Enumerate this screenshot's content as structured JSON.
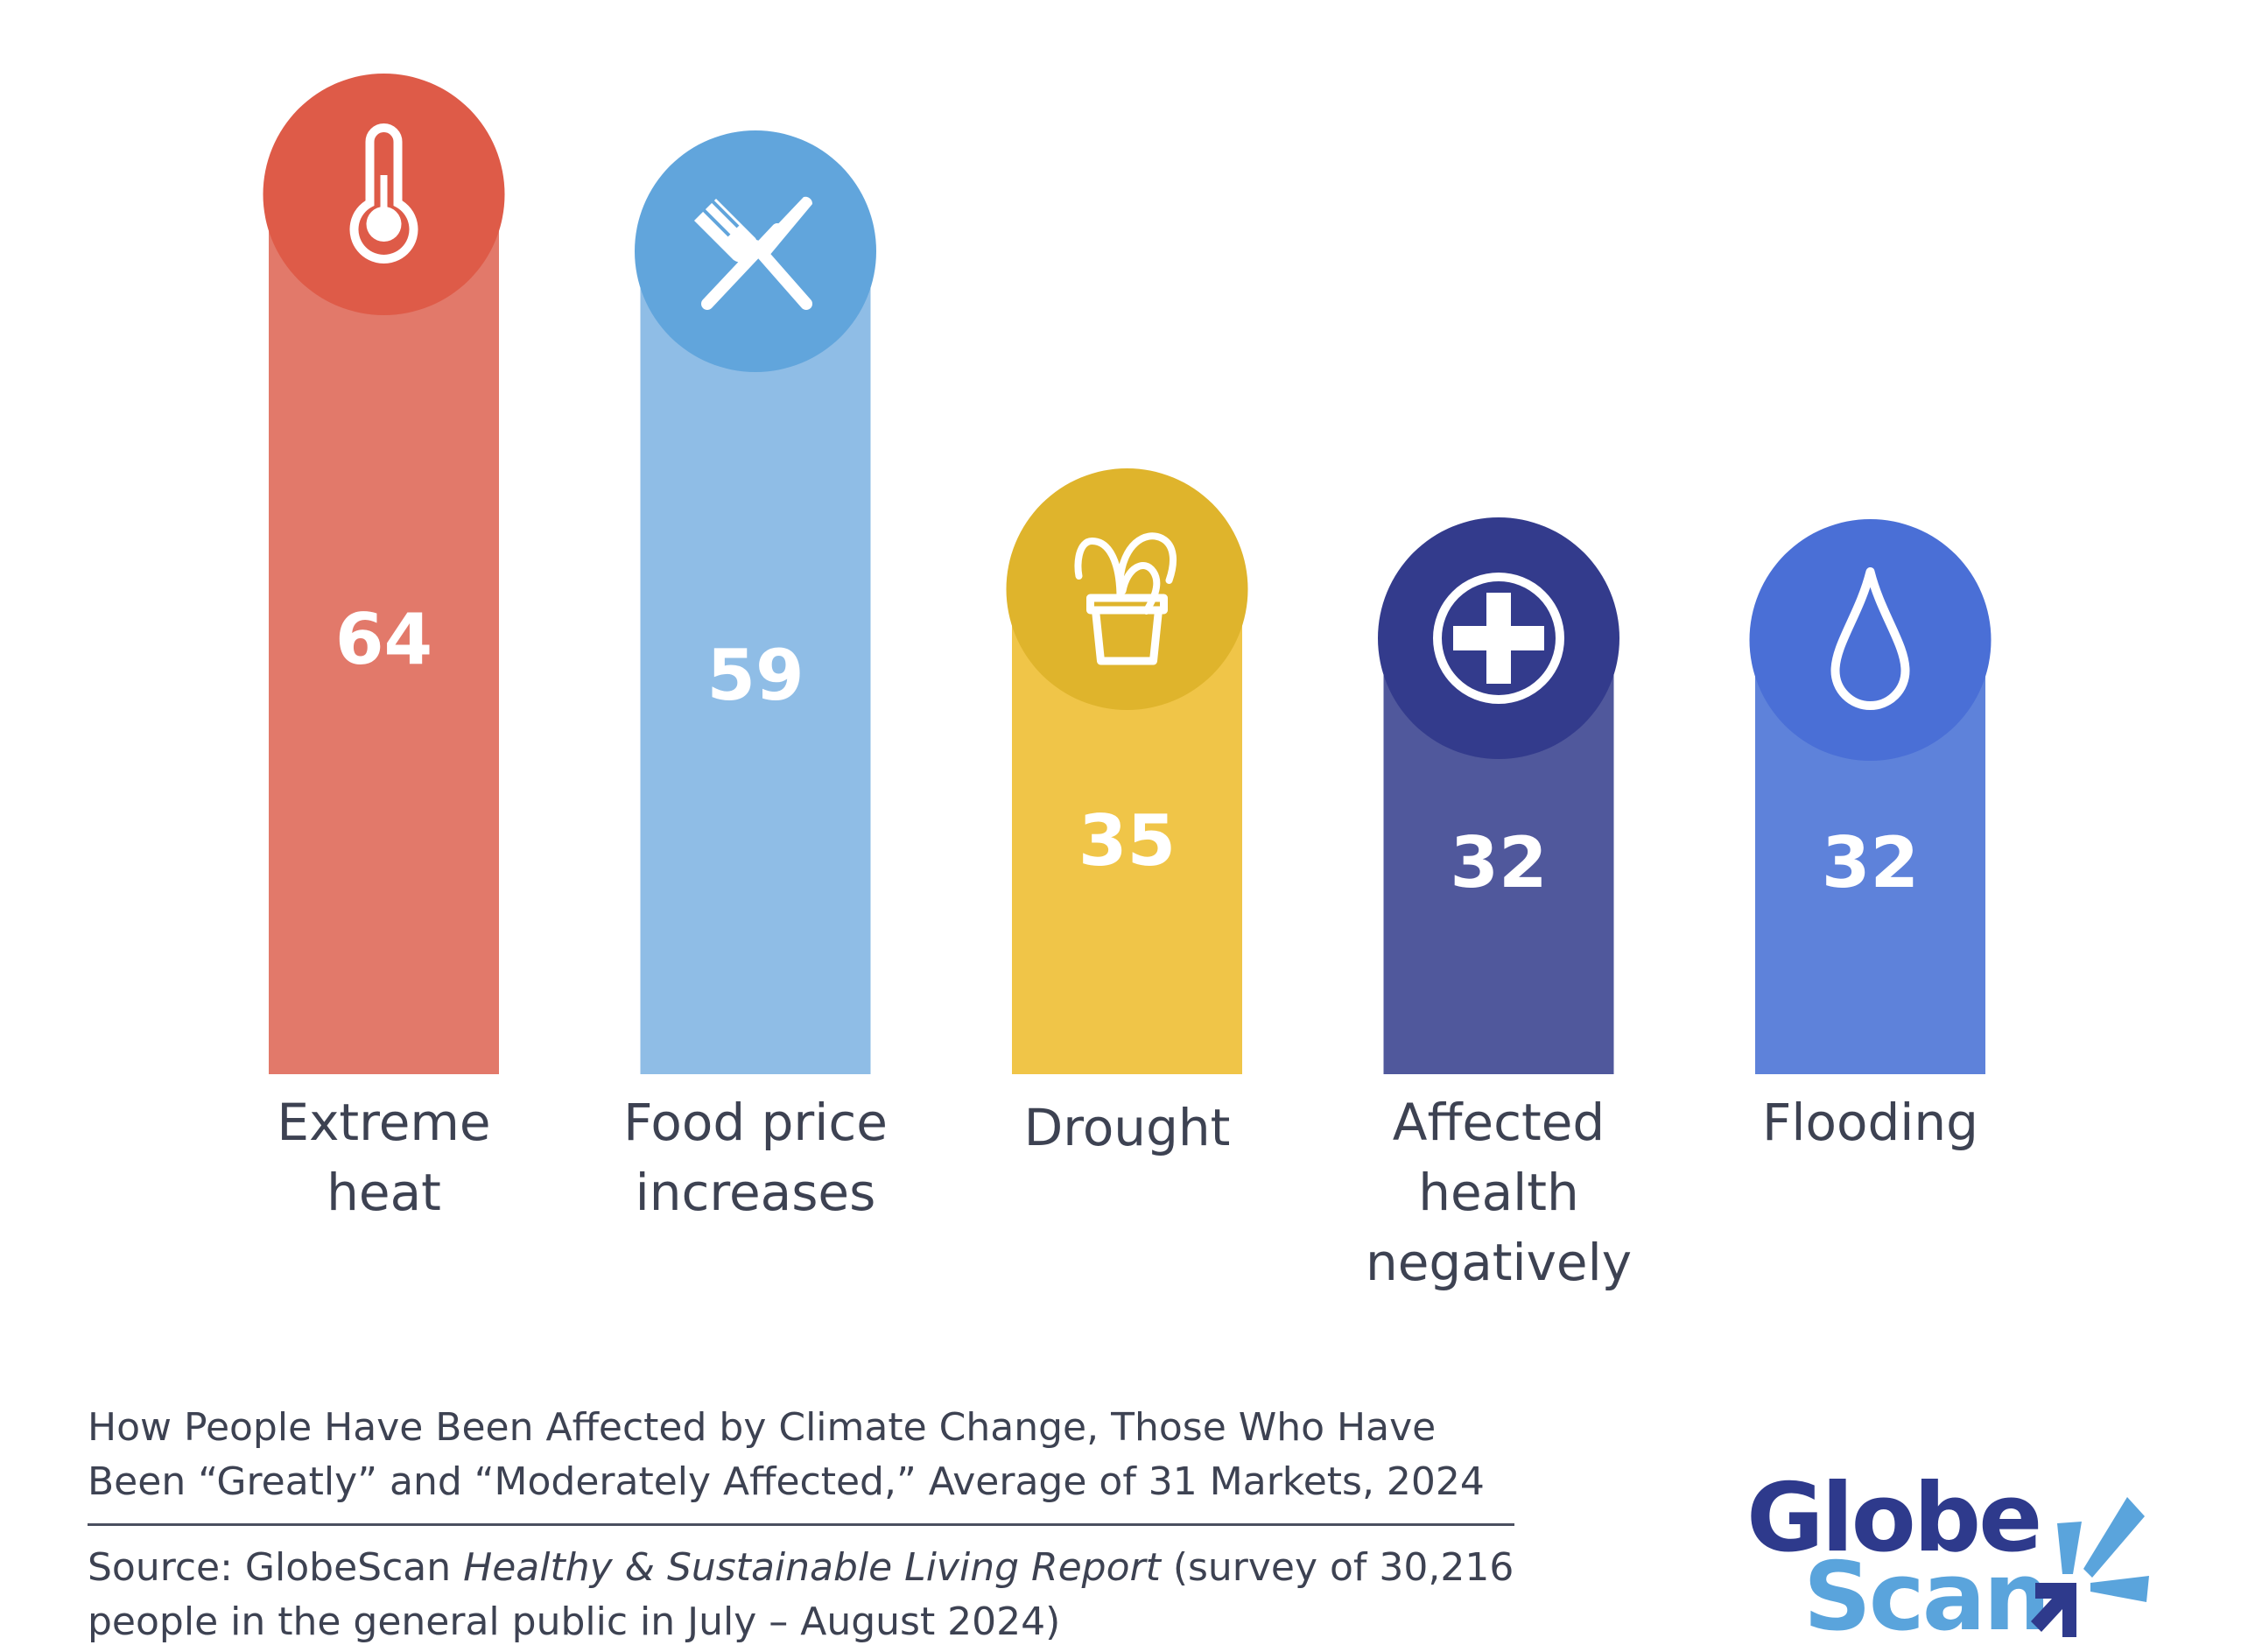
{
  "chart_data": {
    "type": "bar",
    "title": "How People Have Been Affected by Climate Change, Those Who Have Been “Greatly” and “Moderately Affected,” Average of 31 Markets, 2024",
    "xlabel": "",
    "ylabel": "",
    "ylim": [
      0,
      100
    ],
    "grid": false,
    "legend": "none",
    "unit": "percent",
    "categories": [
      "Extreme heat",
      "Food price increases",
      "Drought",
      "Affected health negatively",
      "Flooding"
    ],
    "category_lines": [
      [
        "Extreme",
        "heat"
      ],
      [
        "Food price",
        "increases"
      ],
      [
        "Drought"
      ],
      [
        "Affected",
        "health",
        "negatively"
      ],
      [
        "Flooding"
      ]
    ],
    "values": [
      64,
      59,
      35,
      32,
      32
    ],
    "value_labels": [
      "64",
      "59",
      "35",
      "32",
      "32"
    ],
    "icons": [
      "thermometer-icon",
      "fork-knife-icon",
      "wilted-plant-icon",
      "medical-cross-icon",
      "water-drop-icon"
    ],
    "bar_colors": [
      "#e2796a",
      "#8fbde6",
      "#f0c548",
      "#50589c",
      "#5e82da"
    ],
    "circle_colors": [
      "#de5b48",
      "#61a5dc",
      "#dfb42c",
      "#333b8c",
      "#4a6fd6"
    ]
  },
  "caption": {
    "title_lines": [
      "How People Have Been Affected by Climate Change, Those Who Have",
      "Been “Greatly” and “Moderately Affected,” Average of 31 Markets, 2024"
    ],
    "source_prefix": "Source: GlobeScan ",
    "source_italic": "Healthy & Sustainable Living Report",
    "source_suffix": " (survey of 30,216 people in the general public in July – August 2024)"
  },
  "logo": {
    "line1": "Globe",
    "line2": "Scan",
    "primary_color": "#2e3a8c",
    "secondary_color": "#5aa4dc"
  }
}
